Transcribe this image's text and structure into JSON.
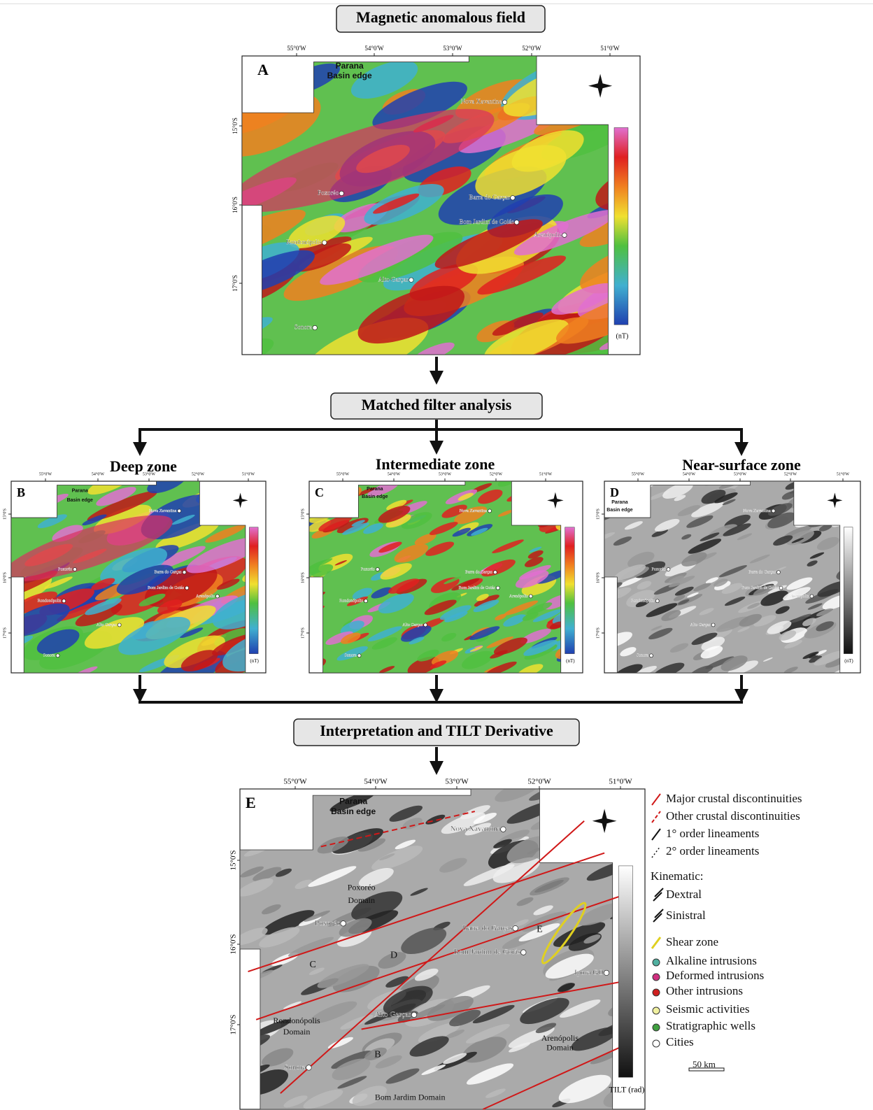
{
  "steps": [
    "Magnetic anomalous field",
    "Matched filter analysis",
    "Interpretation and TILT Derivative"
  ],
  "zones": [
    "Deep zone",
    "Intermediate zone",
    "Near-surface zone"
  ],
  "panels": [
    {
      "letter": "A",
      "longitudes": [
        "55°0'W",
        "54°0'W",
        "53°0'W",
        "52°0'W",
        "51°0'W"
      ],
      "latitudes": [
        "15°0'S",
        "16°0'S",
        "17°0'S"
      ],
      "notes": [
        "Parana",
        "Basin edge"
      ],
      "cities": [
        "Nova Xavantina",
        "Poxoréo",
        "Barra do Garças",
        "Bom Jardim de Goiás",
        "Arenópolis",
        "Rondonópolis",
        "Alto Garças",
        "Sonora"
      ],
      "unit": "(nT)"
    },
    {
      "letter": "B",
      "longitudes": [
        "55°0'W",
        "54°0'W",
        "53°0'W",
        "52°0'W",
        "51°0'W"
      ],
      "latitudes": [
        "15°0'S",
        "16°0'S",
        "17°0'S"
      ],
      "notes": [
        "Parana",
        "Basin edge"
      ],
      "cities": [
        "Nova Xavantina",
        "Poxoréo",
        "Barra do Garças",
        "Bom Jardim de Goiás",
        "Arenópolis",
        "Rondonópolis",
        "Alto Garças",
        "Sonora"
      ],
      "unit": "(nT)"
    },
    {
      "letter": "C",
      "longitudes": [
        "55°0'W",
        "54°0'W",
        "53°0'W",
        "52°0'W",
        "51°0'W"
      ],
      "latitudes": [
        "15°0'S",
        "16°0'S",
        "17°0'S"
      ],
      "notes": [
        "Parana",
        "Basin edge"
      ],
      "cities": [
        "Nova Xavantina",
        "Poxoréo",
        "Barra do Garças",
        "Bom Jardim de Goiás",
        "Arenópolis",
        "Rondonópolis",
        "Alto Garças",
        "Sonora"
      ],
      "unit": "(nT)"
    },
    {
      "letter": "D",
      "longitudes": [
        "55°0'W",
        "54°0'W",
        "53°0'W",
        "52°0'W",
        "51°0'W"
      ],
      "latitudes": [
        "15°0'S",
        "16°0'S",
        "17°0'S"
      ],
      "notes": [
        "Parana",
        "Basin edge"
      ],
      "cities": [
        "Nova Xavantina",
        "Poxoréo",
        "Barra do Garças",
        "Bom Jardim de Goiás",
        "Arenópolis",
        "Rondonópolis",
        "Alto Garças",
        "Sonora"
      ],
      "unit": "(nT)"
    },
    {
      "letter": "E",
      "longitudes": [
        "55°0'W",
        "54°0'W",
        "53°0'W",
        "52°0'W",
        "51°0'W"
      ],
      "latitudes": [
        "15°0'S",
        "16°0'S",
        "17°0'S"
      ],
      "notes": [
        "Parana",
        "Basin edge",
        "Poxoréo",
        "Domain",
        "Rondonópolis",
        "Domain",
        "Arenópolis",
        "Domain",
        "Bom Jardim Domain",
        "C",
        "D",
        "B",
        "E"
      ],
      "cities": [
        "Nova Xavantina",
        "Poxoréo",
        "Barra do Garças",
        "Bom Jardim de Goiás",
        "Alto Garças",
        "Sonora",
        "Ipora GO"
      ],
      "unit": "TILT (rad)"
    }
  ],
  "legend": [
    "Major crustal discontinuities",
    "Other crustal discontinuities",
    "1° order lineaments",
    "2° order lineaments",
    "Kinematic:",
    "Dextral",
    "Sinistral",
    "Shear zone",
    "Alkaline intrusions",
    "Deformed intrusions",
    "Other intrusions",
    "Seismic activities",
    "Stratigraphic wells",
    "Cities",
    "50 km"
  ]
}
